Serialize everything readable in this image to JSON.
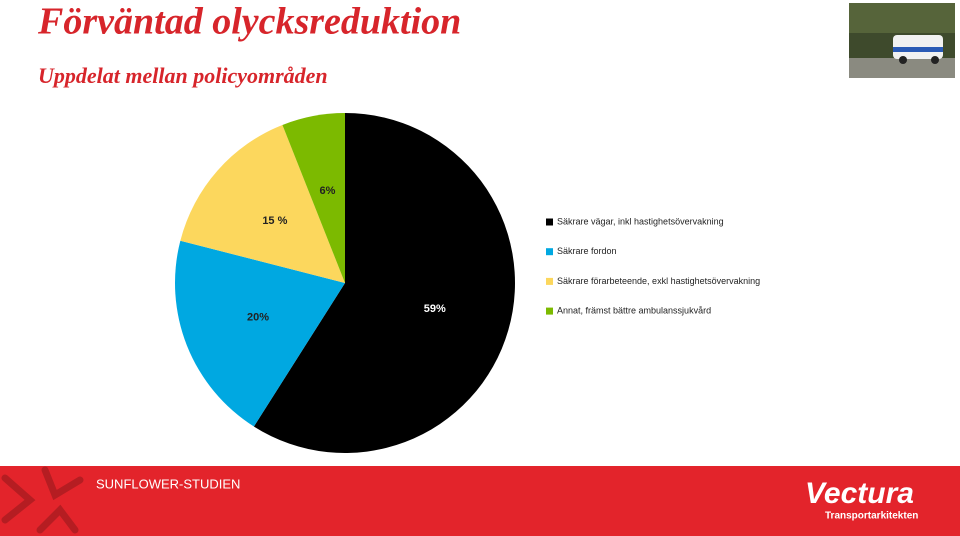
{
  "header": {
    "title": "Förväntad olycksreduktion",
    "subtitle": "Uppdelat mellan policyområden"
  },
  "chart_data": {
    "type": "pie",
    "categories": [
      "Säkrare vägar, inkl hastighetsövervakning",
      "Säkrare fordon",
      "Säkrare förarbeteende, exkl hastighetsövervakning",
      "Annat, främst bättre ambulanssjukvård"
    ],
    "values": [
      59,
      20,
      15,
      6
    ],
    "value_labels": [
      "59%",
      "20%",
      "15 %",
      "6%"
    ],
    "colors": [
      "#000000",
      "#00a8e1",
      "#fcd75d",
      "#7cba00"
    ],
    "legend": "right"
  },
  "footer": {
    "text": "SUNFLOWER-STUDIEN",
    "logo": "Vectura",
    "tagline": "Transportarkitekten"
  }
}
